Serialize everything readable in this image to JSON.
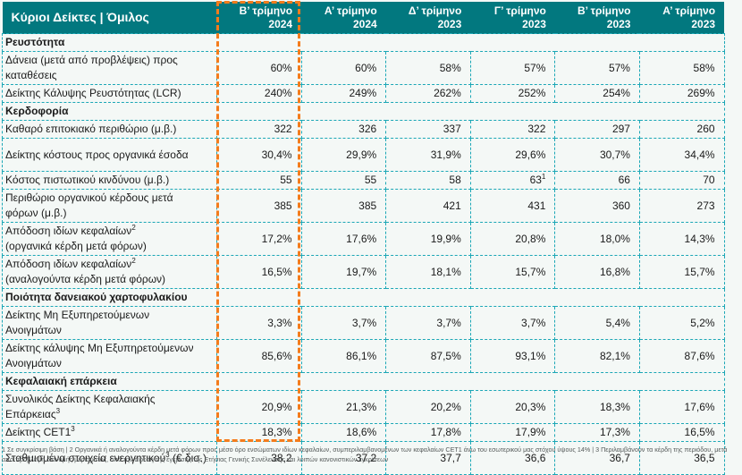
{
  "table": {
    "title": "Κύριοι Δείκτες | Όμιλος",
    "columns": [
      {
        "quarter": "Β’ τρίμηνο",
        "year": "2024"
      },
      {
        "quarter": "Α’ τρίμηνο",
        "year": "2024"
      },
      {
        "quarter": "Δ’ τρίμηνο",
        "year": "2023"
      },
      {
        "quarter": "Γ’ τρίμηνο",
        "year": "2023"
      },
      {
        "quarter": "Β’ τρίμηνο",
        "year": "2023"
      },
      {
        "quarter": "Α’ τρίμηνο",
        "year": "2023"
      }
    ],
    "highlighted_column": "Β’ τρίμηνο 2024",
    "sections": [
      {
        "title": "Ρευστότητα",
        "rows": [
          {
            "label": "Δάνεια (μετά από προβλέψεις) προς καταθέσεις",
            "sup": "",
            "values": [
              "60%",
              "60%",
              "58%",
              "57%",
              "57%",
              "58%"
            ]
          },
          {
            "label": "Δείκτης Κάλυψης Ρευστότητας (LCR)",
            "sup": "",
            "values": [
              "240%",
              "249%",
              "262%",
              "252%",
              "254%",
              "269%"
            ]
          }
        ]
      },
      {
        "title": "Κερδοφορία",
        "rows": [
          {
            "label": "Καθαρό επιτοκιακό περιθώριο (μ.β.)",
            "sup": "",
            "values": [
              "322",
              "326",
              "337",
              "322",
              "297",
              "260"
            ]
          },
          {
            "label": "Δείκτης κόστους προς οργανικά έσοδα",
            "sup": "",
            "values": [
              "30,4%",
              "29,9%",
              "31,9%",
              "29,6%",
              "30,7%",
              "34,4%"
            ]
          },
          {
            "label": "Κόστος πιστωτικού κινδύνου (μ.β.)",
            "sup": "",
            "values": [
              "55",
              "55",
              "58",
              "63",
              "66",
              "70"
            ],
            "value_sups": [
              "",
              "",
              "",
              "1",
              "",
              ""
            ]
          },
          {
            "label": "Περιθώριο οργανικού κέρδους μετά φόρων (μ.β.)",
            "sup": "",
            "values": [
              "385",
              "385",
              "421",
              "431",
              "360",
              "273"
            ]
          },
          {
            "label": "Απόδοση ιδίων κεφαλαίων",
            "sup": "2",
            "label2": "(οργανικά κέρδη μετά φόρων)",
            "values": [
              "17,2%",
              "17,6%",
              "19,9%",
              "20,8%",
              "18,0%",
              "14,3%"
            ]
          },
          {
            "label": "Απόδοση ιδίων κεφαλαίων",
            "sup": "2",
            "label2": "(αναλογούντα κέρδη μετά φόρων)",
            "values": [
              "16,5%",
              "19,7%",
              "18,1%",
              "15,7%",
              "16,8%",
              "15,7%"
            ]
          }
        ]
      },
      {
        "title": "Ποιότητα δανειακού χαρτοφυλακίου",
        "rows": [
          {
            "label": "Δείκτης Μη Εξυπηρετούμενων Ανοιγμάτων",
            "sup": "",
            "values": [
              "3,3%",
              "3,7%",
              "3,7%",
              "3,7%",
              "5,4%",
              "5,2%"
            ]
          },
          {
            "label": "Δείκτης κάλυψης Μη Εξυπηρετούμενων Ανοιγμάτων",
            "sup": "",
            "values": [
              "85,6%",
              "86,1%",
              "87,5%",
              "93,1%",
              "82,1%",
              "87,6%"
            ]
          }
        ]
      },
      {
        "title": "Κεφαλαιακή επάρκεια",
        "rows": [
          {
            "label": "Συνολικός Δείκτης Κεφαλαιακής Επάρκειας",
            "sup": "3",
            "values": [
              "20,9%",
              "21,3%",
              "20,2%",
              "20,3%",
              "18,3%",
              "17,6%"
            ]
          },
          {
            "label": "Δείκτης CET1",
            "sup": "3",
            "values": [
              "18,3%",
              "18,6%",
              "17,8%",
              "17,9%",
              "17,3%",
              "16,5%"
            ]
          },
          {
            "label": "Σταθμισμένα στοιχεία ενεργητικού",
            "sup": "3",
            "label2": "(€ δισ.)",
            "values": [
              "38,2",
              "37,2",
              "37,7",
              "36,6",
              "36,7",
              "36,5"
            ]
          }
        ]
      }
    ],
    "footnote": "1 Σε συγκρίσιμη βάση | 2 Οργανικά ή αναλογούντα κέρδη μετά φόρων προς μέσο όρο ενσώματων ιδίων κεφαλαίων, συμπεριλαμβανομένων των κεφαλαίων CET1 άνω του εσωτερικού μας στόχου ύψους 14% | 3 Περιλαμβάνουν τα κέρδη της περιόδου, μετά από πρόβλεψη διανομής μερίσματος, υπό την αίρεση της έγκρισης της Ετήσιας Γενικής Συνέλευσης και λοιπών κανονιστικών εγκρίσεων"
  },
  "colors": {
    "header_bg": "#02787f",
    "grid_dash": "#1ba7b6",
    "highlight": "#f47c1c",
    "body_bg": "#f4f8f6"
  }
}
